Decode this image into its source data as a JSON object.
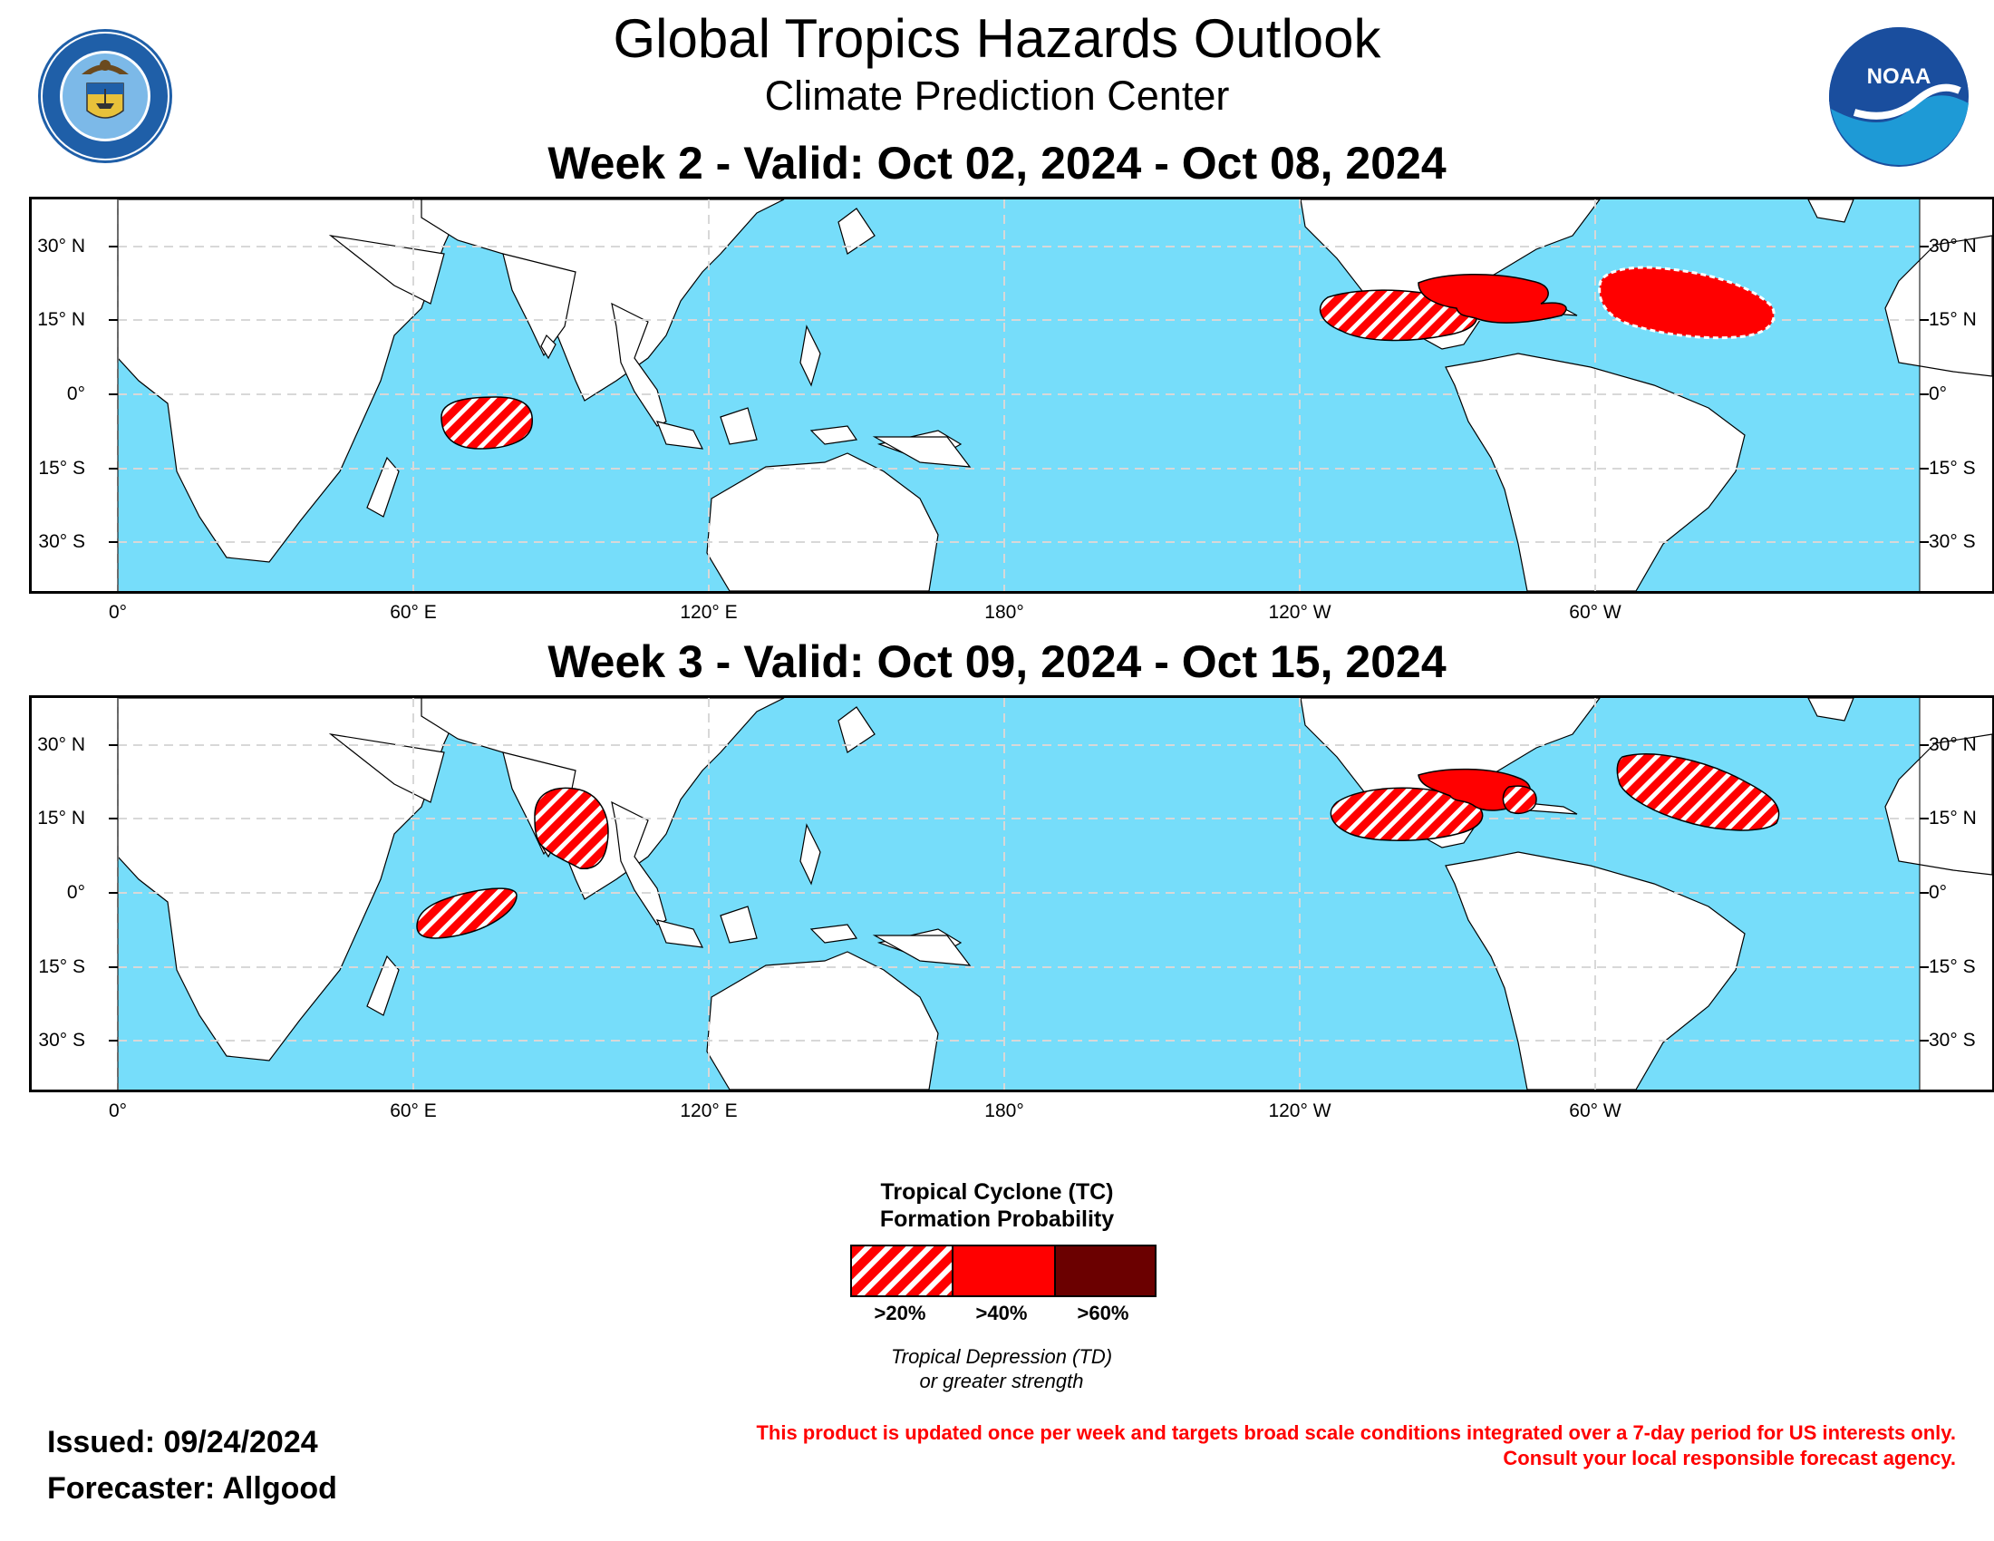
{
  "header": {
    "title": "Global Tropics Hazards Outlook",
    "subtitle": "Climate Prediction Center"
  },
  "logos": {
    "left": "U.S. Department of Commerce seal",
    "left_text": "DEPARTMENT OF COMMERCE · UNITED STATES OF AMERICA",
    "right": "NOAA logo",
    "right_text": "NOAA"
  },
  "weeks": [
    {
      "title": "Week 2 - Valid: Oct 02, 2024 - Oct 08, 2024",
      "hazards": [
        {
          "region": "South Indian Ocean",
          "probability": ">20%"
        },
        {
          "region": "East Pacific (south of Mexico)",
          "probability": ">20%"
        },
        {
          "region": "Gulf of Mexico / Western Caribbean",
          "probability": ">40%"
        },
        {
          "region": "Central Atlantic",
          "probability": ">40%"
        }
      ]
    },
    {
      "title": "Week 3 - Valid: Oct 09, 2024 - Oct 15, 2024",
      "hazards": [
        {
          "region": "Bay of Bengal",
          "probability": ">20%"
        },
        {
          "region": "South Indian Ocean",
          "probability": ">20%"
        },
        {
          "region": "East Pacific (south of Mexico)",
          "probability": ">20%"
        },
        {
          "region": "Gulf of Mexico / Western Caribbean",
          "probability": ">40%"
        },
        {
          "region": "Central Atlantic",
          "probability": ">20%"
        }
      ]
    }
  ],
  "axes": {
    "lat_left": [
      "30° N",
      "15° N",
      "0°",
      "15° S",
      "30° S"
    ],
    "lat_right": [
      "30° N",
      "15° N",
      "0°",
      "15° S",
      "30° S"
    ],
    "lon": [
      "0°",
      "60° E",
      "120° E",
      "180°",
      "120° W",
      "60° W"
    ]
  },
  "colors": {
    "ocean": "#76ddfa",
    "land": "#ffffff",
    "prob_20": "#ff0000",
    "prob_40": "#ff0000",
    "prob_60": "#6b0000"
  },
  "legend": {
    "title_line1": "Tropical Cyclone (TC)",
    "title_line2": "Formation Probability",
    "items": [
      ">20%",
      ">40%",
      ">60%"
    ],
    "note_line1": "Tropical Depression (TD)",
    "note_line2": "or greater strength"
  },
  "footer": {
    "issued": "Issued: 09/24/2024",
    "forecaster": "Forecaster: Allgood",
    "disclaimer_line1": "This product is updated once per week and targets broad scale conditions integrated over a 7-day period for US interests only.",
    "disclaimer_line2": "Consult your local responsible forecast agency."
  }
}
